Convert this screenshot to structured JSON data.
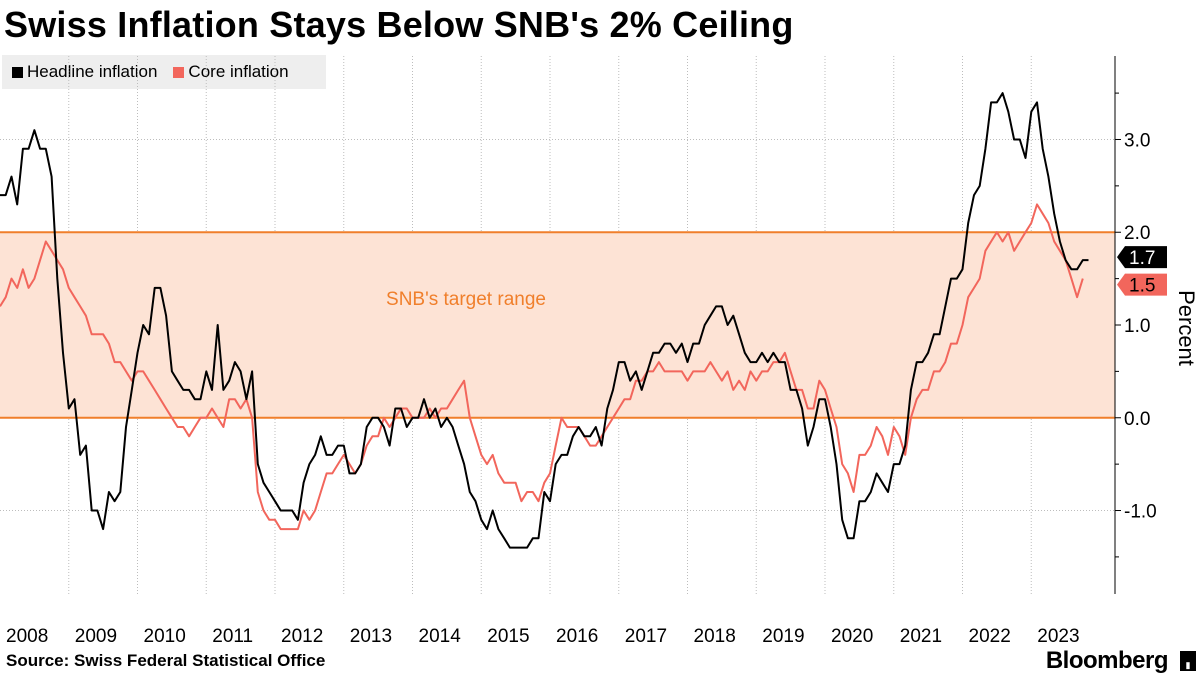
{
  "title": "Swiss Inflation Stays Below SNB's 2% Ceiling",
  "legend": [
    {
      "label": "Headline inflation",
      "color": "#000000"
    },
    {
      "label": "Core inflation",
      "color": "#f2665c"
    }
  ],
  "source": "Source: Swiss Federal Statistical Office",
  "brand": "Bloomberg",
  "chart_data": {
    "type": "line",
    "ylabel": "Percent",
    "ylim": [
      -1.9,
      3.9
    ],
    "xlim": [
      "2008-01",
      "2023-09"
    ],
    "y_ticks": [
      "3.0",
      "2.0",
      "1.0",
      "0.0",
      "-1.0"
    ],
    "x_ticks": [
      "2008",
      "2009",
      "2010",
      "2011",
      "2012",
      "2013",
      "2014",
      "2015",
      "2016",
      "2017",
      "2018",
      "2019",
      "2020",
      "2021",
      "2022",
      "2023"
    ],
    "band": {
      "from": 0,
      "to": 2,
      "label": "SNB's target range",
      "fill": "#fde3d5",
      "line": "#f07f2b"
    },
    "last_value_labels": [
      "1.7",
      "1.5"
    ],
    "series": [
      {
        "name": "Headline inflation",
        "color": "#000000",
        "start": "2008-01",
        "values": [
          2.4,
          2.4,
          2.6,
          2.3,
          2.9,
          2.9,
          3.1,
          2.9,
          2.9,
          2.6,
          1.5,
          0.7,
          0.1,
          0.2,
          -0.4,
          -0.3,
          -1.0,
          -1.0,
          -1.2,
          -0.8,
          -0.9,
          -0.8,
          -0.1,
          0.3,
          0.7,
          1.0,
          0.9,
          1.4,
          1.4,
          1.1,
          0.5,
          0.4,
          0.3,
          0.3,
          0.2,
          0.2,
          0.5,
          0.3,
          1.0,
          0.3,
          0.4,
          0.6,
          0.5,
          0.2,
          0.5,
          -0.5,
          -0.7,
          -0.8,
          -0.9,
          -1.0,
          -1.0,
          -1.0,
          -1.1,
          -0.7,
          -0.5,
          -0.4,
          -0.2,
          -0.4,
          -0.4,
          -0.3,
          -0.3,
          -0.6,
          -0.6,
          -0.5,
          -0.1,
          0.0,
          0.0,
          -0.1,
          -0.3,
          0.1,
          0.1,
          -0.1,
          0.0,
          0.0,
          0.2,
          0.0,
          0.1,
          -0.1,
          0.0,
          -0.1,
          -0.3,
          -0.5,
          -0.8,
          -0.9,
          -1.1,
          -1.2,
          -1.0,
          -1.2,
          -1.3,
          -1.4,
          -1.4,
          -1.4,
          -1.4,
          -1.3,
          -1.3,
          -0.8,
          -0.9,
          -0.5,
          -0.4,
          -0.4,
          -0.2,
          -0.1,
          -0.2,
          -0.2,
          -0.1,
          -0.3,
          0.1,
          0.3,
          0.6,
          0.6,
          0.4,
          0.5,
          0.3,
          0.5,
          0.7,
          0.7,
          0.8,
          0.8,
          0.7,
          0.8,
          0.6,
          0.8,
          0.8,
          1.0,
          1.1,
          1.2,
          1.2,
          1.0,
          1.1,
          0.9,
          0.7,
          0.6,
          0.6,
          0.7,
          0.6,
          0.7,
          0.6,
          0.6,
          0.3,
          0.3,
          0.1,
          -0.3,
          -0.1,
          0.2,
          0.2,
          -0.1,
          -0.5,
          -1.1,
          -1.3,
          -1.3,
          -0.9,
          -0.9,
          -0.8,
          -0.6,
          -0.7,
          -0.8,
          -0.5,
          -0.5,
          -0.3,
          0.3,
          0.6,
          0.6,
          0.7,
          0.9,
          0.9,
          1.2,
          1.5,
          1.5,
          1.6,
          2.1,
          2.4,
          2.5,
          2.9,
          3.4,
          3.4,
          3.5,
          3.3,
          3.0,
          3.0,
          2.8,
          3.3,
          3.4,
          2.9,
          2.6,
          2.2,
          1.9,
          1.7,
          1.6,
          1.6,
          1.7,
          1.7
        ]
      },
      {
        "name": "Core inflation",
        "color": "#f2665c",
        "start": "2008-01",
        "values": [
          1.2,
          1.3,
          1.5,
          1.4,
          1.6,
          1.4,
          1.5,
          1.7,
          1.9,
          1.8,
          1.7,
          1.6,
          1.4,
          1.3,
          1.2,
          1.1,
          0.9,
          0.9,
          0.9,
          0.8,
          0.6,
          0.6,
          0.5,
          0.4,
          0.5,
          0.5,
          0.4,
          0.3,
          0.2,
          0.1,
          0.0,
          -0.1,
          -0.1,
          -0.2,
          -0.1,
          0.0,
          0.0,
          0.1,
          0.0,
          -0.1,
          0.2,
          0.2,
          0.1,
          0.2,
          0.0,
          -0.8,
          -1.0,
          -1.1,
          -1.1,
          -1.2,
          -1.2,
          -1.2,
          -1.2,
          -1.0,
          -1.1,
          -1.0,
          -0.8,
          -0.6,
          -0.6,
          -0.5,
          -0.4,
          -0.5,
          -0.6,
          -0.5,
          -0.3,
          -0.2,
          -0.2,
          0.0,
          -0.1,
          0.0,
          0.1,
          0.1,
          0.0,
          0.0,
          0.0,
          0.1,
          0.0,
          0.1,
          0.1,
          0.2,
          0.3,
          0.4,
          0.0,
          -0.2,
          -0.4,
          -0.5,
          -0.4,
          -0.6,
          -0.7,
          -0.7,
          -0.7,
          -0.9,
          -0.8,
          -0.8,
          -0.9,
          -0.7,
          -0.6,
          -0.3,
          0.0,
          -0.1,
          -0.1,
          -0.1,
          -0.2,
          -0.3,
          -0.3,
          -0.2,
          -0.1,
          0.0,
          0.1,
          0.2,
          0.2,
          0.4,
          0.4,
          0.5,
          0.5,
          0.6,
          0.5,
          0.5,
          0.5,
          0.5,
          0.4,
          0.5,
          0.5,
          0.5,
          0.6,
          0.5,
          0.4,
          0.5,
          0.3,
          0.4,
          0.3,
          0.5,
          0.4,
          0.5,
          0.5,
          0.6,
          0.6,
          0.7,
          0.5,
          0.3,
          0.3,
          0.1,
          0.1,
          0.4,
          0.3,
          0.1,
          -0.1,
          -0.5,
          -0.6,
          -0.8,
          -0.4,
          -0.4,
          -0.3,
          -0.1,
          -0.2,
          -0.4,
          -0.1,
          -0.2,
          -0.4,
          0.0,
          0.2,
          0.3,
          0.3,
          0.5,
          0.5,
          0.6,
          0.8,
          0.8,
          1.0,
          1.3,
          1.4,
          1.5,
          1.8,
          1.9,
          2.0,
          1.9,
          2.0,
          1.8,
          1.9,
          2.0,
          2.1,
          2.3,
          2.2,
          2.1,
          1.9,
          1.8,
          1.7,
          1.5,
          1.3,
          1.5
        ]
      }
    ]
  }
}
